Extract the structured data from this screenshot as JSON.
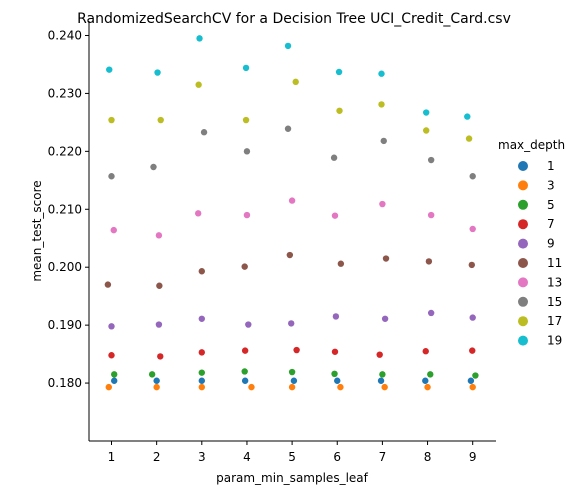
{
  "chart_data": {
    "type": "scatter",
    "title": "RandomizedSearchCV for a Decision Tree UCI_Credit_Card.csv",
    "xlabel": "param_min_samples_leaf",
    "ylabel": "mean_test_score",
    "categories": [
      "1",
      "2",
      "3",
      "4",
      "5",
      "6",
      "7",
      "8",
      "9"
    ],
    "ylim": [
      0.17,
      0.2425
    ],
    "yticks": [
      0.18,
      0.19,
      0.2,
      0.21,
      0.22,
      0.23,
      0.24
    ],
    "ytick_labels": [
      "0.180",
      "0.190",
      "0.200",
      "0.210",
      "0.220",
      "0.230",
      "0.240"
    ],
    "grid": false,
    "legend_title": "max_depth",
    "legend_position": "right",
    "series": [
      {
        "name": "1",
        "color": "#1f77b4",
        "values": [
          0.1804,
          0.1804,
          0.1804,
          0.1804,
          0.1804,
          0.1804,
          0.1804,
          0.1804,
          0.1804
        ],
        "jitter": [
          0.06,
          0.0,
          0.0,
          -0.04,
          0.04,
          0.0,
          -0.03,
          -0.05,
          -0.04
        ]
      },
      {
        "name": "3",
        "color": "#ff7f0e",
        "values": [
          0.1793,
          0.1793,
          0.1793,
          0.1793,
          0.1793,
          0.1793,
          0.1793,
          0.1793,
          0.1793
        ],
        "jitter": [
          -0.06,
          0.0,
          0.0,
          0.1,
          0.0,
          0.07,
          0.05,
          0.0,
          0.0
        ]
      },
      {
        "name": "5",
        "color": "#2ca02c",
        "values": [
          0.1815,
          0.1815,
          0.1818,
          0.182,
          0.1819,
          0.1816,
          0.1815,
          0.1815,
          0.1813
        ],
        "jitter": [
          0.06,
          -0.1,
          0.0,
          -0.05,
          0.0,
          -0.06,
          0.0,
          0.06,
          0.06
        ]
      },
      {
        "name": "7",
        "color": "#d62728",
        "values": [
          0.1848,
          0.1846,
          0.1853,
          0.1856,
          0.1857,
          0.1854,
          0.1849,
          0.1855,
          0.1856
        ],
        "jitter": [
          0.0,
          0.08,
          0.0,
          -0.04,
          0.1,
          -0.05,
          -0.06,
          -0.04,
          -0.01
        ]
      },
      {
        "name": "9",
        "color": "#9467bd",
        "values": [
          0.1898,
          0.1901,
          0.1911,
          0.1901,
          0.1903,
          0.1915,
          0.1911,
          0.1921,
          0.1913
        ],
        "jitter": [
          0.0,
          0.05,
          0.0,
          0.03,
          -0.02,
          -0.03,
          0.06,
          0.08,
          0.0
        ]
      },
      {
        "name": "11",
        "color": "#8c564b",
        "values": [
          0.197,
          0.1968,
          0.1993,
          0.2001,
          0.2021,
          0.2006,
          0.2015,
          0.201,
          0.2004
        ],
        "jitter": [
          -0.08,
          0.06,
          0.0,
          -0.05,
          -0.05,
          0.08,
          0.08,
          0.03,
          -0.02
        ]
      },
      {
        "name": "13",
        "color": "#e377c2",
        "values": [
          0.2064,
          0.2055,
          0.2093,
          0.209,
          0.2115,
          0.2089,
          0.2109,
          0.209,
          0.2066
        ],
        "jitter": [
          0.05,
          0.05,
          -0.08,
          0.0,
          0.0,
          -0.05,
          0.0,
          0.08,
          0.0
        ]
      },
      {
        "name": "15",
        "color": "#7f7f7f",
        "values": [
          0.2157,
          0.2173,
          0.2233,
          0.22,
          0.2239,
          0.2189,
          0.2218,
          0.2185,
          0.2157
        ],
        "jitter": [
          0.0,
          -0.07,
          0.05,
          0.0,
          -0.09,
          -0.07,
          0.03,
          0.08,
          0.0
        ]
      },
      {
        "name": "17",
        "color": "#bcbd22",
        "values": [
          0.2254,
          0.2254,
          0.2315,
          0.2254,
          0.232,
          0.227,
          0.2281,
          0.2236,
          0.2222
        ],
        "jitter": [
          0.0,
          0.09,
          -0.07,
          -0.02,
          0.08,
          0.05,
          -0.02,
          -0.03,
          -0.08
        ]
      },
      {
        "name": "19",
        "color": "#17becf",
        "values": [
          0.2341,
          0.2336,
          0.2395,
          0.2344,
          0.2382,
          0.2337,
          0.2334,
          0.2267,
          0.226
        ],
        "jitter": [
          -0.05,
          0.02,
          -0.05,
          -0.02,
          -0.09,
          0.04,
          -0.02,
          -0.03,
          -0.12
        ]
      }
    ]
  }
}
